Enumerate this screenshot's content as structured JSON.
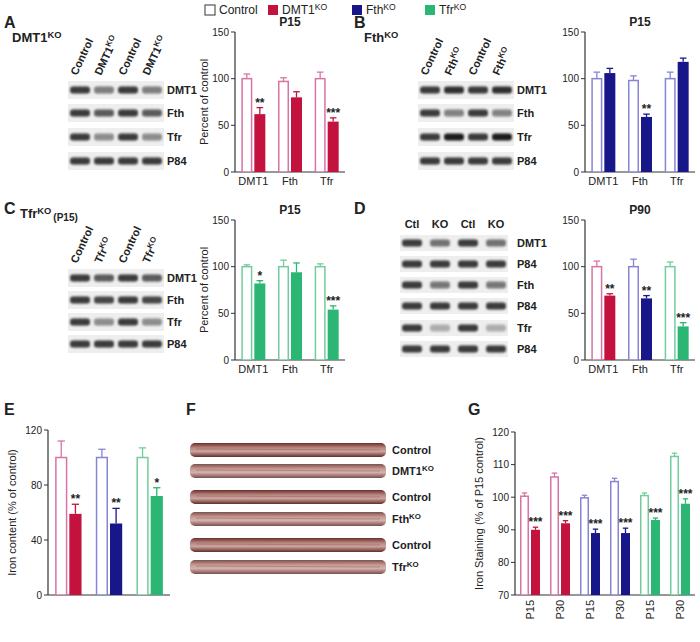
{
  "chart_data": [
    {
      "type": "bar",
      "title": "P15",
      "y_label": "Percent of control",
      "categories": [
        "DMT1",
        "Fth",
        "Tfr"
      ],
      "ylim": [
        0,
        150
      ],
      "yticks": [
        0,
        50,
        100,
        150
      ],
      "series": [
        {
          "name": "Control",
          "color": "#d873a6",
          "values": [
            100,
            97,
            100
          ],
          "errors": [
            5,
            4,
            7
          ]
        },
        {
          "name": "DMT1KO",
          "color": "#c4123f",
          "values": [
            62,
            80,
            54
          ],
          "errors": [
            7,
            6,
            4
          ],
          "significance": [
            "**",
            null,
            "***"
          ]
        }
      ]
    },
    {
      "type": "bar",
      "title": "P15",
      "categories": [
        "DMT1",
        "Fth",
        "Tfr"
      ],
      "ylim": [
        0,
        150
      ],
      "yticks": [
        0,
        50,
        100,
        150
      ],
      "series": [
        {
          "name": "Control",
          "color": "#8585d6",
          "values": [
            100,
            98,
            100
          ],
          "errors": [
            7,
            5,
            7
          ]
        },
        {
          "name": "FthKO",
          "color": "#17178a",
          "values": [
            106,
            59,
            118
          ],
          "errors": [
            5,
            3,
            4
          ],
          "significance": [
            null,
            "**",
            null
          ]
        }
      ]
    },
    {
      "type": "bar",
      "title": "P15",
      "y_label": "Percent of control",
      "categories": [
        "DMT1",
        "Fth",
        "Tfr"
      ],
      "ylim": [
        0,
        150
      ],
      "yticks": [
        0,
        50,
        100,
        150
      ],
      "series": [
        {
          "name": "Control",
          "color": "#72cc9c",
          "values": [
            100,
            100,
            100
          ],
          "errors": [
            2,
            7,
            3
          ]
        },
        {
          "name": "TfrKO",
          "color": "#2bb673",
          "values": [
            82,
            94,
            54
          ],
          "errors": [
            3,
            10,
            4
          ],
          "significance": [
            "*",
            null,
            "***"
          ]
        }
      ]
    },
    {
      "type": "bar",
      "title": "P90",
      "categories": [
        "DMT1",
        "Fth",
        "Tfr"
      ],
      "ylim": [
        0,
        150
      ],
      "yticks": [
        0,
        50,
        100,
        150
      ],
      "series": [
        {
          "name": "Control",
          "colors": [
            "#d873a6",
            "#8585d6",
            "#72cc9c"
          ],
          "values": [
            100,
            100,
            100
          ],
          "errors": [
            6,
            8,
            5
          ]
        },
        {
          "name": "KO",
          "colors": [
            "#c4123f",
            "#17178a",
            "#2bb673"
          ],
          "values": [
            69,
            66,
            36
          ],
          "errors": [
            2,
            3,
            4
          ],
          "significance": [
            "**",
            "**",
            "***"
          ]
        }
      ]
    },
    {
      "type": "bar",
      "panel": "E",
      "y_label": "Iron content (% of control)",
      "categories": [
        null,
        null,
        null
      ],
      "ylim": [
        0,
        120
      ],
      "yticks": [
        0,
        40,
        80,
        120
      ],
      "series": [
        {
          "name": "Control",
          "colors": [
            "#d873a6",
            "#8585d6",
            "#72cc9c"
          ],
          "values": [
            100,
            100,
            100
          ],
          "errors": [
            12,
            6,
            7
          ]
        },
        {
          "name": "KO",
          "colors": [
            "#c4123f",
            "#17178a",
            "#2bb673"
          ],
          "values": [
            59,
            52,
            72
          ],
          "errors": [
            7,
            11,
            6
          ],
          "significance": [
            "**",
            "**",
            "*"
          ]
        }
      ]
    },
    {
      "type": "bar",
      "panel": "G",
      "y_label": "Iron Staining (% of P15 control)",
      "categories": [
        "P15",
        "P30",
        "P15",
        "P30",
        "P15",
        "P30"
      ],
      "ylim": [
        70,
        120
      ],
      "yticks": [
        70,
        80,
        90,
        100,
        110,
        120
      ],
      "series": [
        {
          "name": "Control",
          "colors": [
            "#d873a6",
            "#d873a6",
            "#8585d6",
            "#8585d6",
            "#72cc9c",
            "#72cc9c"
          ],
          "values": [
            100.3,
            106.2,
            99.8,
            104.8,
            100.5,
            112.5
          ],
          "errors": [
            1,
            1.2,
            0.8,
            1,
            0.8,
            1
          ]
        },
        {
          "name": "KO",
          "colors": [
            "#c4123f",
            "#c4123f",
            "#17178a",
            "#17178a",
            "#2bb673",
            "#2bb673"
          ],
          "values": [
            90,
            92,
            89,
            89,
            93,
            98
          ],
          "errors": [
            0.8,
            0.8,
            1.2,
            1.5,
            0.6,
            1.5
          ],
          "significance": [
            "***",
            "***",
            "***",
            "***",
            "***",
            "***"
          ]
        }
      ]
    }
  ],
  "blots": [
    {
      "panel": "A",
      "title": "DMT1KO",
      "lanes": [
        "Control",
        "DMT1KO",
        "Control",
        "DMT1KO"
      ],
      "rows": [
        "DMT1",
        "Fth",
        "Tfr",
        "P84"
      ]
    },
    {
      "panel": "B",
      "title": "FthKO",
      "lanes": [
        "Control",
        "FthKO",
        "Control",
        "FthKO"
      ],
      "rows": [
        "DMT1",
        "Fth",
        "Tfr",
        "P84"
      ]
    },
    {
      "panel": "C",
      "title": "TfrKO",
      "subtitle": "(P15)",
      "lanes": [
        "Control",
        "TfrKO",
        "Control",
        "TfrKO"
      ],
      "rows": [
        "DMT1",
        "Fth",
        "Tfr",
        "P84"
      ]
    },
    {
      "panel": "D",
      "lanes": [
        "Ctl",
        "KO",
        "Ctl",
        "KO"
      ],
      "rows": [
        "DMT1",
        "P84",
        "Fth",
        "P84",
        "Tfr",
        "P84"
      ]
    }
  ],
  "fibers": {
    "panel": "F",
    "labels": [
      "Control",
      "DMT1KO",
      "Control",
      "FthKO",
      "Control",
      "TfrKO"
    ]
  }
}
